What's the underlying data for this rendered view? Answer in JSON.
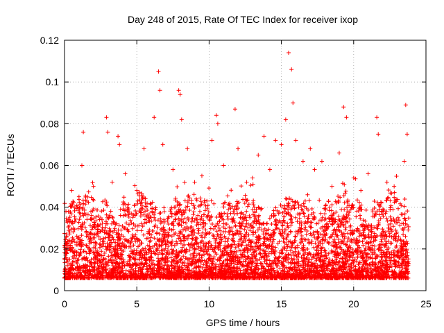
{
  "chart_data": {
    "type": "scatter",
    "title": "Day 248 of 2015, Rate Of TEC Index for receiver ixop",
    "xlabel": "GPS time / hours",
    "ylabel": "ROTI / TECUs",
    "xlim": [
      0,
      25
    ],
    "ylim": [
      0,
      0.12
    ],
    "x_ticks": [
      0,
      5,
      10,
      15,
      20,
      25
    ],
    "y_ticks": [
      0,
      0.02,
      0.04,
      0.06,
      0.08,
      0.1,
      0.12
    ],
    "x_tick_labels": [
      "0",
      "5",
      "10",
      "15",
      "20",
      "25"
    ],
    "y_tick_labels": [
      "0",
      "0.02",
      "0.04",
      "0.06",
      "0.08",
      "0.1",
      "0.12"
    ],
    "grid": true,
    "marker": "+",
    "color": "#ff0000",
    "series": [
      {
        "x": [
          0.1,
          0.5,
          1.0,
          1.2,
          1.3,
          2.0,
          2.9,
          3.0,
          3.3,
          3.7,
          3.8,
          4.2,
          5.0,
          5.5,
          6.2,
          6.5,
          6.6,
          6.8,
          7.5,
          7.9,
          8.0,
          8.1,
          8.5,
          9.0,
          9.5,
          10.2,
          10.5,
          10.6,
          11.0,
          11.8,
          12.0,
          12.6,
          13.0,
          13.4,
          13.8,
          14.2,
          14.6,
          15.0,
          15.3,
          15.5,
          15.7,
          15.8,
          16.0,
          16.5,
          17.0,
          17.3,
          17.8,
          18.5,
          19.0,
          19.3,
          19.5,
          20.0,
          20.5,
          21.0,
          21.6,
          21.7,
          22.3,
          22.8,
          23.5,
          23.6,
          23.7
        ],
        "y": [
          0.038,
          0.048,
          0.045,
          0.06,
          0.076,
          0.05,
          0.083,
          0.076,
          0.052,
          0.074,
          0.07,
          0.056,
          0.048,
          0.068,
          0.083,
          0.105,
          0.096,
          0.07,
          0.058,
          0.096,
          0.094,
          0.082,
          0.068,
          0.052,
          0.055,
          0.072,
          0.084,
          0.08,
          0.06,
          0.087,
          0.068,
          0.052,
          0.054,
          0.065,
          0.074,
          0.058,
          0.072,
          0.07,
          0.082,
          0.114,
          0.106,
          0.09,
          0.072,
          0.062,
          0.068,
          0.058,
          0.062,
          0.05,
          0.066,
          0.088,
          0.083,
          0.054,
          0.048,
          0.056,
          0.083,
          0.075,
          0.052,
          0.05,
          0.062,
          0.089,
          0.075
        ]
      }
    ]
  }
}
